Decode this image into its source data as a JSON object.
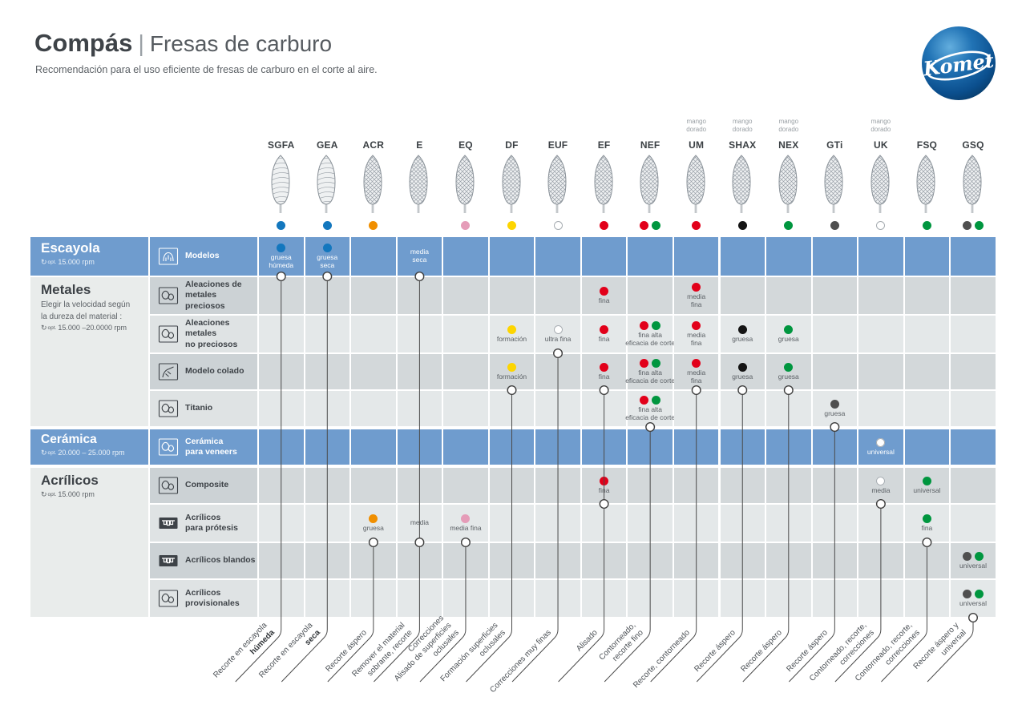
{
  "header": {
    "title": "Compás",
    "separator": "|",
    "title2": "Fresas de carburo",
    "description": "Recomendación para el uso eficiente de fresas de carburo en el corte al aire."
  },
  "logo": {
    "brand": "Komet"
  },
  "rpm_icon": "↻",
  "rpm_opt": "opt.",
  "theme": {
    "blue_band": "#6f9cce",
    "row_dark": "#d3d8da",
    "row_light": "#e4e8e9",
    "category_gray": "#e9eceb",
    "line": "#4a4a4a",
    "komet_blue": "#0c518f"
  },
  "dot_colors": {
    "blue": "#1377be",
    "orange": "#f08f00",
    "pink": "#e59cb8",
    "yellow": "#fdd500",
    "white": "#ffffff",
    "red": "#e2001a",
    "green": "#00963f",
    "black": "#141414",
    "gray": "#4f4f4f"
  },
  "columns": [
    {
      "id": "SGFA",
      "note": "",
      "dots": [
        "blue"
      ],
      "flute": "spiral"
    },
    {
      "id": "GEA",
      "note": "",
      "dots": [
        "blue"
      ],
      "flute": "spiral"
    },
    {
      "id": "ACR",
      "note": "",
      "dots": [
        "orange"
      ],
      "flute": "cross"
    },
    {
      "id": "E",
      "note": "",
      "dots": [],
      "flute": "cross"
    },
    {
      "id": "EQ",
      "note": "",
      "dots": [
        "pink"
      ],
      "flute": "cross"
    },
    {
      "id": "DF",
      "note": "",
      "dots": [
        "yellow"
      ],
      "flute": "cross"
    },
    {
      "id": "EUF",
      "note": "",
      "dots": [
        "white"
      ],
      "flute": "cross"
    },
    {
      "id": "EF",
      "note": "",
      "dots": [
        "red"
      ],
      "flute": "cross"
    },
    {
      "id": "NEF",
      "note": "",
      "dots": [
        "red",
        "green"
      ],
      "flute": "cross"
    },
    {
      "id": "UM",
      "note": "mango dorado",
      "dots": [
        "red"
      ],
      "flute": "cross"
    },
    {
      "id": "SHAX",
      "note": "mango dorado",
      "dots": [
        "black"
      ],
      "flute": "cross"
    },
    {
      "id": "NEX",
      "note": "mango dorado",
      "dots": [
        "green"
      ],
      "flute": "cross"
    },
    {
      "id": "GTi",
      "note": "",
      "dots": [
        "gray"
      ],
      "flute": "cross"
    },
    {
      "id": "UK",
      "note": "mango dorado",
      "dots": [
        "white"
      ],
      "flute": "cross"
    },
    {
      "id": "FSQ",
      "note": "",
      "dots": [
        "green"
      ],
      "flute": "cross"
    },
    {
      "id": "GSQ",
      "note": "",
      "dots": [
        "gray",
        "green"
      ],
      "flute": "cross"
    }
  ],
  "categories": [
    {
      "name": "Escayola",
      "note_lines": [],
      "rpm": "15.000 rpm",
      "style": "blue"
    },
    {
      "name": "Metales",
      "note_lines": [
        "Elegir la velocidad según",
        "la dureza del material :"
      ],
      "rpm": "15.000 –20.0000 rpm",
      "style": "gray"
    },
    {
      "name": "Cerámica",
      "note_lines": [],
      "rpm": "20.000 – 25.000 rpm",
      "style": "blue"
    },
    {
      "name": "Acrílicos",
      "note_lines": [],
      "rpm": "15.000 rpm",
      "style": "gray"
    }
  ],
  "rows": [
    {
      "label": "Modelos",
      "icon": "jaw-model",
      "style": "blue",
      "cells": {
        "SGFA": {
          "dots": [
            "blue"
          ],
          "text": "gruesa\nhúmeda",
          "conn": true
        },
        "GEA": {
          "dots": [
            "blue"
          ],
          "text": "gruesa\nseca",
          "conn": true
        },
        "E": {
          "dots": [],
          "text": "media\nseca",
          "conn": true
        }
      }
    },
    {
      "label": "Aleaciones de\nmetales preciosos",
      "icon": "crowns",
      "style": "dark",
      "cells": {
        "EF": {
          "dots": [
            "red"
          ],
          "text": "fina"
        },
        "UM": {
          "dots": [
            "red"
          ],
          "text": "media\nfina"
        }
      }
    },
    {
      "label": "Aleaciones metales\nno preciosos",
      "icon": "crowns",
      "style": "light",
      "cells": {
        "DF": {
          "dots": [
            "yellow"
          ],
          "text": "formación"
        },
        "EUF": {
          "dots": [
            "white"
          ],
          "text": "ultra fina",
          "conn": true
        },
        "EF": {
          "dots": [
            "red"
          ],
          "text": "fina"
        },
        "NEF": {
          "dots": [
            "red",
            "green"
          ],
          "text": "fina alta\neficacia de corte"
        },
        "UM": {
          "dots": [
            "red"
          ],
          "text": "media\nfina"
        },
        "SHAX": {
          "dots": [
            "black"
          ],
          "text": "gruesa"
        },
        "NEX": {
          "dots": [
            "green"
          ],
          "text": "gruesa"
        }
      }
    },
    {
      "label": "Modelo colado",
      "icon": "casting-hand",
      "style": "dark",
      "cells": {
        "DF": {
          "dots": [
            "yellow"
          ],
          "text": "formación",
          "conn": true
        },
        "EF": {
          "dots": [
            "red"
          ],
          "text": "fina",
          "conn": true
        },
        "NEF": {
          "dots": [
            "red",
            "green"
          ],
          "text": "fina alta\neficacia de corte"
        },
        "UM": {
          "dots": [
            "red"
          ],
          "text": "media\nfina",
          "conn": true
        },
        "SHAX": {
          "dots": [
            "black"
          ],
          "text": "gruesa",
          "conn": true
        },
        "NEX": {
          "dots": [
            "green"
          ],
          "text": "gruesa",
          "conn": true
        }
      }
    },
    {
      "label": "Titanio",
      "icon": "crowns",
      "style": "light",
      "cells": {
        "NEF": {
          "dots": [
            "red",
            "green"
          ],
          "text": "fina alta\neficacia de corte",
          "conn": true
        },
        "GTi": {
          "dots": [
            "gray"
          ],
          "text": "gruesa",
          "conn": true
        }
      }
    },
    {
      "label": "Cerámica\npara veneers",
      "icon": "crowns",
      "style": "blue",
      "cells": {
        "UK": {
          "dots": [
            "white"
          ],
          "text": "universal"
        }
      }
    },
    {
      "label": "Composite",
      "icon": "crowns",
      "style": "dark",
      "cells": {
        "EF": {
          "dots": [
            "red"
          ],
          "text": "fina",
          "conn": true
        },
        "UK": {
          "dots": [
            "white"
          ],
          "text": "media",
          "conn": true
        },
        "FSQ": {
          "dots": [
            "green"
          ],
          "text": "universal"
        }
      }
    },
    {
      "label": "Acrílicos\npara prótesis",
      "icon": "denture",
      "style": "light",
      "cells": {
        "ACR": {
          "dots": [
            "orange"
          ],
          "text": "gruesa",
          "conn": true
        },
        "E": {
          "dots": [],
          "text": "media",
          "conn": true
        },
        "EQ": {
          "dots": [
            "pink"
          ],
          "text": "media fina",
          "conn": true
        },
        "FSQ": {
          "dots": [
            "green"
          ],
          "text": "fina",
          "conn": true
        }
      }
    },
    {
      "label": "Acrílicos blandos",
      "icon": "denture",
      "style": "dark",
      "cells": {
        "GSQ": {
          "dots": [
            "gray",
            "green"
          ],
          "text": "universal"
        }
      }
    },
    {
      "label": "Acrílicos\nprovisionales",
      "icon": "crowns",
      "style": "light",
      "cells": {
        "GSQ": {
          "dots": [
            "gray",
            "green"
          ],
          "text": "universal",
          "conn": true
        }
      }
    }
  ],
  "footer_labels": [
    {
      "lines": [
        "Recorte en escayola"
      ],
      "bold": "húmeda"
    },
    {
      "lines": [
        "Recorte en escayola"
      ],
      "bold": "seca"
    },
    {
      "lines": [
        "Recorte áspero"
      ]
    },
    {
      "lines": [
        "Remover el material",
        "sobrante, recorte"
      ]
    },
    {
      "lines": [
        "Correcciones",
        "Alisado de superficies",
        "oclusales"
      ]
    },
    {
      "lines": [
        "Formación superficies",
        "oclusales"
      ]
    },
    {
      "lines": [
        "Correcciones muy finas"
      ]
    },
    {
      "lines": [
        "Alisado"
      ]
    },
    {
      "lines": [
        "Contorneado,",
        "recorte fino"
      ]
    },
    {
      "lines": [
        "Recorte, contorneado"
      ]
    },
    {
      "lines": [
        "Recorte áspero"
      ]
    },
    {
      "lines": [
        "Recorte áspero"
      ]
    },
    {
      "lines": [
        "Recorte áspero"
      ]
    },
    {
      "lines": [
        "Contorneado, recorte,",
        "correcciones"
      ]
    },
    {
      "lines": [
        "Contorneado, recorte,",
        "correcciones"
      ]
    },
    {
      "lines": [
        "Recorte áspero y",
        "universal"
      ]
    }
  ]
}
